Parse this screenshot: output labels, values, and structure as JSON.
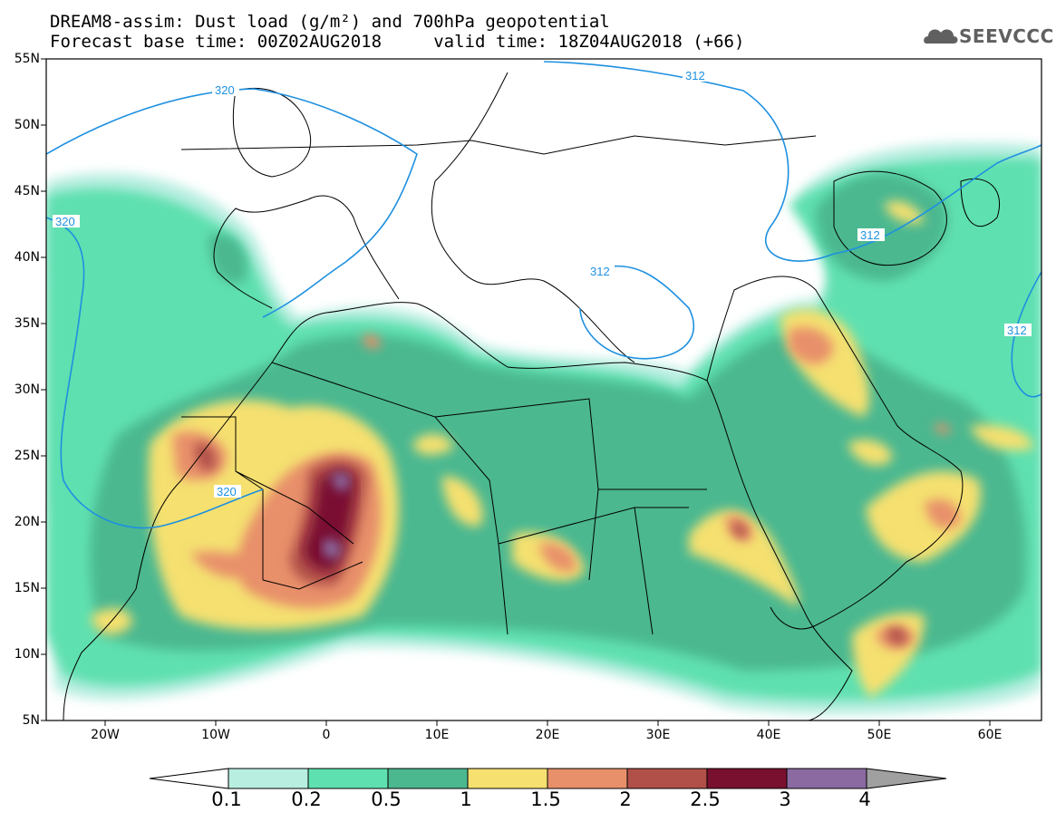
{
  "header": {
    "title_line1": "DREAM8-assim: Dust load (g/m²) and 700hPa geopotential",
    "title_line2": "Forecast base time: 00Z02AUG2018     valid time: 18Z04AUG2018 (+66)",
    "logo_text": "SEEVCCC"
  },
  "axes": {
    "lat_labels": [
      "55N",
      "50N",
      "45N",
      "40N",
      "35N",
      "30N",
      "25N",
      "20N",
      "15N",
      "10N",
      "5N"
    ],
    "lon_labels": [
      "20W",
      "10W",
      "0",
      "10E",
      "20E",
      "30E",
      "40E",
      "50E",
      "60E"
    ]
  },
  "contour_labels": [
    "320",
    "320",
    "320",
    "312",
    "312",
    "312",
    "312"
  ],
  "colorbar": {
    "labels": [
      "0.1",
      "0.2",
      "0.5",
      "1",
      "1.5",
      "2",
      "2.5",
      "3",
      "4"
    ],
    "colors": [
      "#b8eee0",
      "#5fe0b0",
      "#4cb890",
      "#f5e070",
      "#e8906a",
      "#b05048",
      "#7a1030",
      "#8a6aa0",
      "#a0a0a0"
    ]
  }
}
